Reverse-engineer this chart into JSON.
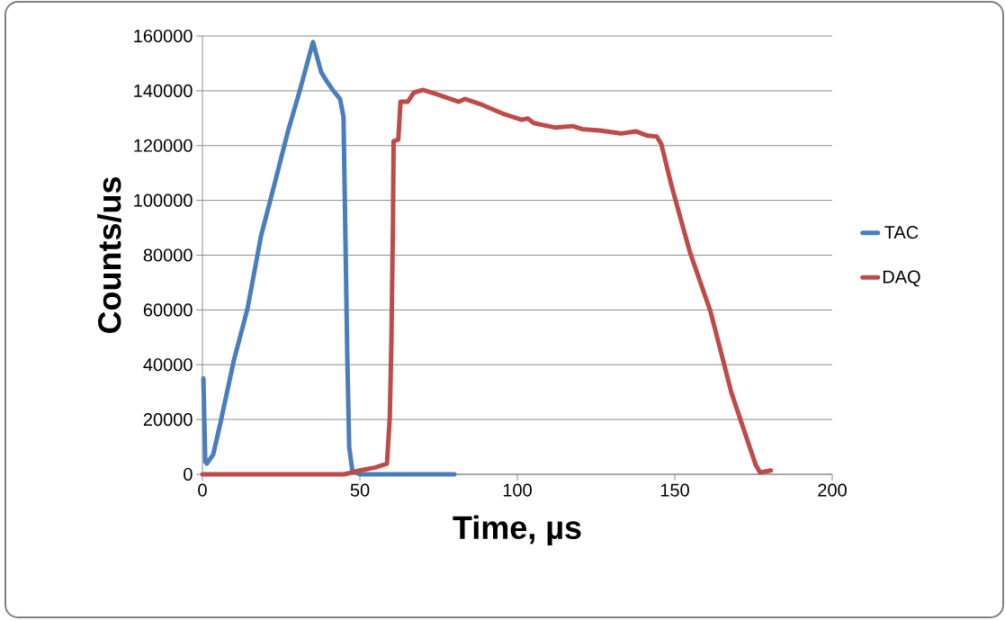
{
  "chart_data": {
    "type": "line",
    "xlabel": "Time, µs",
    "ylabel": "Counts/us",
    "xlim": [
      0,
      200
    ],
    "ylim": [
      0,
      160000
    ],
    "xticks": [
      0,
      50,
      100,
      150,
      200
    ],
    "yticks": [
      0,
      20000,
      40000,
      60000,
      80000,
      100000,
      120000,
      140000,
      160000
    ],
    "grid": "y",
    "legend": "right",
    "marker": "none",
    "line_style": "solid",
    "series": [
      {
        "name": "TAC",
        "color": "#4a7ebb",
        "x": [
          0.3,
          0.9,
          1.4,
          3.4,
          5.7,
          10,
          14.3,
          18.6,
          22.9,
          27.1,
          30.9,
          35.1,
          37.7,
          39.4,
          41.4,
          43.7,
          44.8,
          45.4,
          46,
          46.6,
          47.6,
          50,
          80
        ],
        "values": [
          35000,
          4600,
          3900,
          7200,
          18700,
          41700,
          60400,
          87000,
          106000,
          125000,
          140000,
          157800,
          146800,
          143600,
          140300,
          137000,
          130400,
          86700,
          42700,
          9900,
          1300,
          0,
          0
        ]
      },
      {
        "name": "DAQ",
        "color": "#be4b48",
        "x": [
          0,
          45,
          50,
          55,
          58.6,
          59.5,
          60,
          60.5,
          60.7,
          62.2,
          62.9,
          65.2,
          67.1,
          70,
          74.8,
          81.4,
          83.3,
          89,
          95.7,
          101.4,
          103.3,
          105.2,
          111.9,
          117.6,
          120.5,
          126.2,
          132.9,
          137.6,
          141.4,
          144.3,
          145.7,
          149,
          154.8,
          161.4,
          168,
          175.7,
          177.1,
          180.5
        ],
        "values": [
          0,
          0,
          1400,
          2500,
          3900,
          21000,
          48300,
          92000,
          121600,
          122200,
          136000,
          136000,
          139300,
          140300,
          138600,
          136000,
          137000,
          134800,
          131500,
          129400,
          129900,
          128200,
          126600,
          127100,
          126000,
          125500,
          124400,
          125200,
          123600,
          123300,
          120600,
          105200,
          81100,
          59200,
          29700,
          3400,
          660,
          1400
        ]
      }
    ]
  }
}
